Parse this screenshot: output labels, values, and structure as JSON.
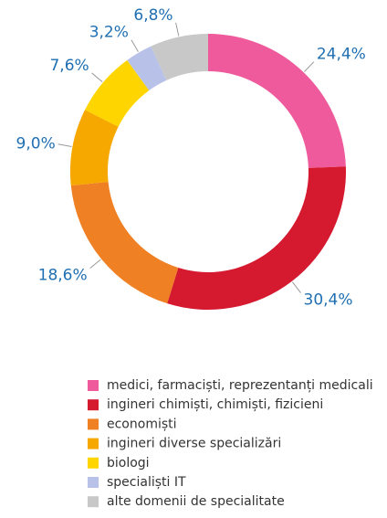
{
  "chart_data": {
    "type": "donut",
    "categories": [
      "medici, farmaciști, reprezentanți medicali",
      "ingineri chimiști, chimiști, fizicieni",
      "economiști",
      "ingineri diverse specializări",
      "biologi",
      "specialiști IT",
      "alte domenii de specialitate"
    ],
    "values": [
      24.4,
      30.4,
      18.6,
      9.0,
      7.6,
      3.2,
      6.8
    ],
    "value_labels": [
      "24,4%",
      "30,4%",
      "18,6%",
      "9,0%",
      "7,6%",
      "3,2%",
      "6,8%"
    ],
    "colors": [
      "#ee5a9c",
      "#d5192f",
      "#f08024",
      "#f6a700",
      "#ffd500",
      "#b8c2e8",
      "#c8c8c8"
    ]
  }
}
